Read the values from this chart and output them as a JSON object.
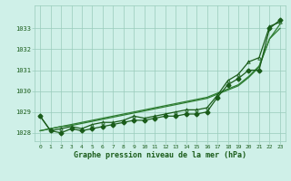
{
  "background_color": "#cff0e8",
  "grid_color": "#99ccbb",
  "line_color_dark": "#1a5c1a",
  "line_color_med": "#2e7d32",
  "xlabel": "Graphe pression niveau de la mer (hPa)",
  "hours": [
    0,
    1,
    2,
    3,
    4,
    5,
    6,
    7,
    8,
    9,
    10,
    11,
    12,
    13,
    14,
    15,
    16,
    17,
    18,
    19,
    20,
    21,
    22,
    23
  ],
  "p1": [
    1028.8,
    1028.1,
    1028.0,
    1028.2,
    1028.1,
    1028.2,
    1028.3,
    1028.4,
    1028.5,
    1028.6,
    1028.6,
    1028.7,
    1028.8,
    1028.8,
    1028.9,
    1028.9,
    1029.0,
    1029.7,
    1030.3,
    1030.6,
    1031.0,
    1031.0,
    1033.0,
    1033.4
  ],
  "p2": [
    1028.8,
    1028.1,
    1028.2,
    1028.3,
    1028.2,
    1028.4,
    1028.5,
    1028.5,
    1028.6,
    1028.8,
    1028.7,
    1028.8,
    1028.9,
    1029.0,
    1029.1,
    1029.1,
    1029.2,
    1029.8,
    1030.5,
    1030.8,
    1031.4,
    1031.6,
    1033.1,
    1033.3
  ],
  "p_trend1": [
    1028.1,
    1028.2,
    1028.3,
    1028.4,
    1028.5,
    1028.6,
    1028.7,
    1028.8,
    1028.9,
    1029.0,
    1029.1,
    1029.2,
    1029.3,
    1029.4,
    1029.5,
    1029.6,
    1029.7,
    1029.9,
    1030.1,
    1030.3,
    1030.7,
    1031.2,
    1032.5,
    1033.2
  ],
  "p_trend2": [
    1028.1,
    1028.2,
    1028.3,
    1028.35,
    1028.45,
    1028.55,
    1028.65,
    1028.75,
    1028.85,
    1028.95,
    1029.05,
    1029.15,
    1029.25,
    1029.35,
    1029.45,
    1029.55,
    1029.65,
    1029.85,
    1030.05,
    1030.25,
    1030.65,
    1031.15,
    1032.5,
    1033.0
  ],
  "ylim_min": 1027.6,
  "ylim_max": 1034.1,
  "yticks": [
    1028,
    1029,
    1030,
    1031,
    1032,
    1033
  ],
  "marker_size_filled": 2.5,
  "marker_size_open": 2.5
}
